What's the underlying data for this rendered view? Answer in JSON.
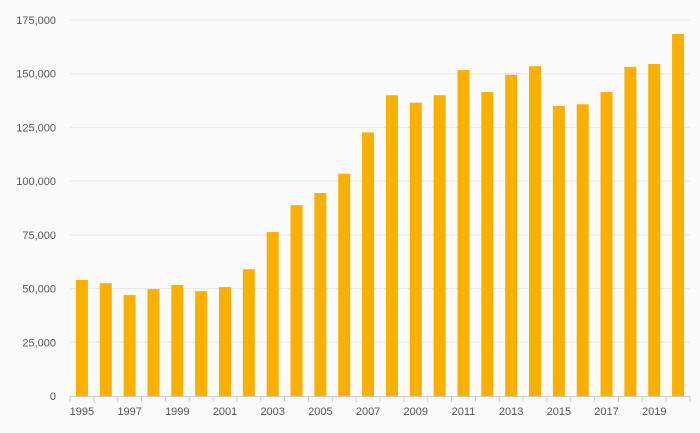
{
  "chart_data": {
    "type": "bar",
    "title": "",
    "xlabel": "",
    "ylabel": "",
    "categories": [
      "1995",
      "1996",
      "1997",
      "1998",
      "1999",
      "2000",
      "2001",
      "2002",
      "2003",
      "2004",
      "2005",
      "2006",
      "2007",
      "2008",
      "2009",
      "2010",
      "2011",
      "2012",
      "2013",
      "2014",
      "2015",
      "2016",
      "2017",
      "2018",
      "2019",
      "2020"
    ],
    "x_tick_labels": [
      "1995",
      "1997",
      "1999",
      "2001",
      "2003",
      "2005",
      "2007",
      "2009",
      "2011",
      "2013",
      "2015",
      "2017",
      "2019"
    ],
    "values": [
      54000,
      52500,
      47000,
      49800,
      51700,
      48800,
      50700,
      59000,
      76300,
      88800,
      94500,
      103500,
      122700,
      140000,
      136500,
      140000,
      151700,
      141500,
      149500,
      153500,
      135000,
      135800,
      141500,
      153200,
      154500,
      168500
    ],
    "ylim": [
      0,
      175000
    ],
    "y_ticks": [
      {
        "value": 0,
        "label": "0"
      },
      {
        "value": 25000,
        "label": "25,000"
      },
      {
        "value": 50000,
        "label": "50,000"
      },
      {
        "value": 75000,
        "label": "75,000"
      },
      {
        "value": 100000,
        "label": "100,000"
      },
      {
        "value": 125000,
        "label": "125,000"
      },
      {
        "value": 150000,
        "label": "150,000"
      },
      {
        "value": 175000,
        "label": "175,000"
      }
    ],
    "grid": true,
    "bar_color": "#f9b000",
    "grid_color": "#e6e6e6",
    "axis_color": "#cccccc"
  }
}
